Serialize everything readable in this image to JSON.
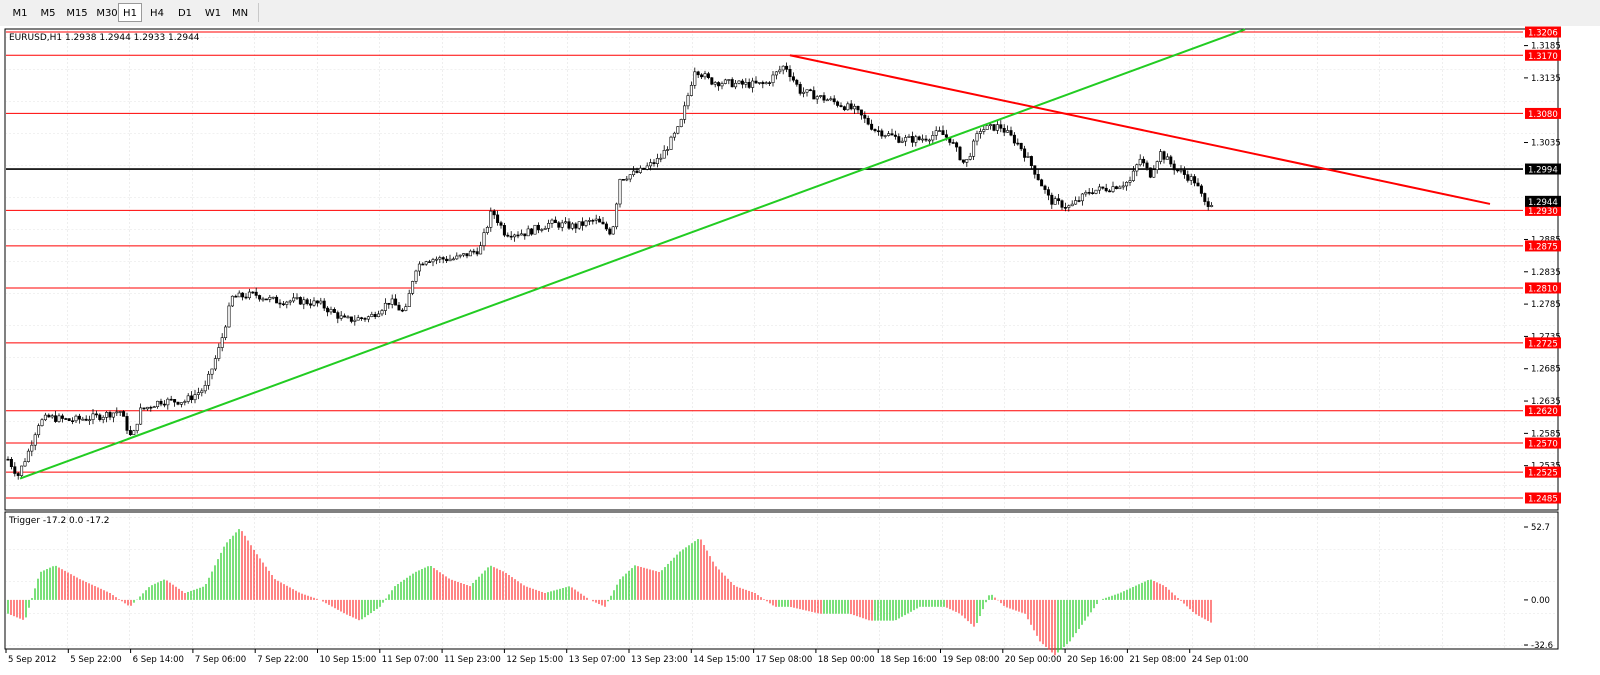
{
  "toolbar": {
    "timeframes": [
      "M1",
      "M5",
      "M15",
      "M30",
      "H1",
      "H4",
      "D1",
      "W1",
      "MN"
    ],
    "active": "H1"
  },
  "main_chart": {
    "title": "EURUSD,H1  1.2938 1.2944 1.2933 1.2944",
    "price_ticks": [
      "1.3185",
      "1.3135",
      "1.3035",
      "1.2885",
      "1.2835",
      "1.2785",
      "1.2735",
      "1.2685",
      "1.2635",
      "1.2585",
      "1.2535"
    ],
    "hlines": [
      {
        "price": "1.3206",
        "color": "#ff0000"
      },
      {
        "price": "1.3170",
        "color": "#ff0000"
      },
      {
        "price": "1.3080",
        "color": "#ff0000"
      },
      {
        "price": "1.2994",
        "color": "#000000"
      },
      {
        "price": "1.2930",
        "color": "#ff0000"
      },
      {
        "price": "1.2875",
        "color": "#ff0000"
      },
      {
        "price": "1.2810",
        "color": "#ff0000"
      },
      {
        "price": "1.2725",
        "color": "#ff0000"
      },
      {
        "price": "1.2620",
        "color": "#ff0000"
      },
      {
        "price": "1.2570",
        "color": "#ff0000"
      },
      {
        "price": "1.2525",
        "color": "#ff0000"
      },
      {
        "price": "1.2485",
        "color": "#ff0000"
      }
    ],
    "current_price": "1.2944",
    "trendlines": [
      {
        "name": "uptrend",
        "color": "#22cc22"
      },
      {
        "name": "downtrend",
        "color": "#ff0000"
      }
    ],
    "candle_colors": {
      "bull": "#ffffff",
      "bear": "#000000",
      "wick": "#000000"
    }
  },
  "indicator": {
    "title": "Trigger -17.2 0.0 -17.2",
    "ticks": [
      "52.7",
      "0.00",
      "-32.6"
    ],
    "colors": {
      "up": "#22cc22",
      "down": "#ff3333"
    }
  },
  "time_axis": [
    "5 Sep 2012",
    "5 Sep 22:00",
    "6 Sep 14:00",
    "7 Sep 06:00",
    "7 Sep 22:00",
    "10 Sep 15:00",
    "11 Sep 07:00",
    "11 Sep 23:00",
    "12 Sep 15:00",
    "13 Sep 07:00",
    "13 Sep 23:00",
    "14 Sep 15:00",
    "17 Sep 08:00",
    "18 Sep 00:00",
    "18 Sep 16:00",
    "19 Sep 08:00",
    "20 Sep 00:00",
    "20 Sep 16:00",
    "21 Sep 08:00",
    "24 Sep 01:00"
  ]
}
